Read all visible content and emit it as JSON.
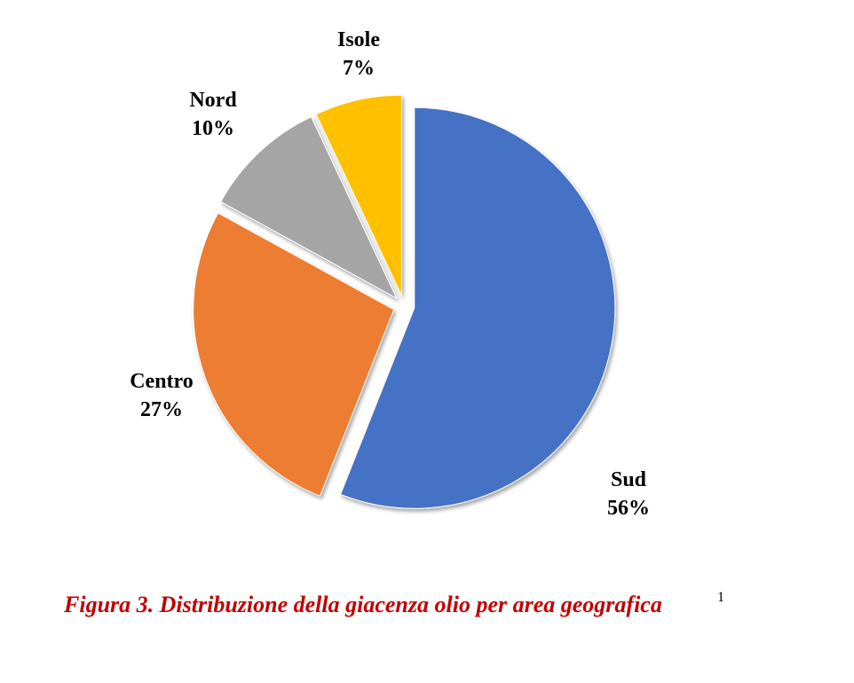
{
  "chart_data": {
    "type": "pie",
    "title": "Figura 3. Distribuzione della giacenza olio per area geografica",
    "footnote": "1",
    "categories": [
      "Sud",
      "Centro",
      "Nord",
      "Isole"
    ],
    "values": [
      56,
      27,
      10,
      7
    ],
    "value_labels": [
      "56%",
      "27%",
      "10%",
      "7%"
    ],
    "colors": [
      "#4472c4",
      "#ed7d31",
      "#a5a5a5",
      "#ffc000"
    ]
  }
}
